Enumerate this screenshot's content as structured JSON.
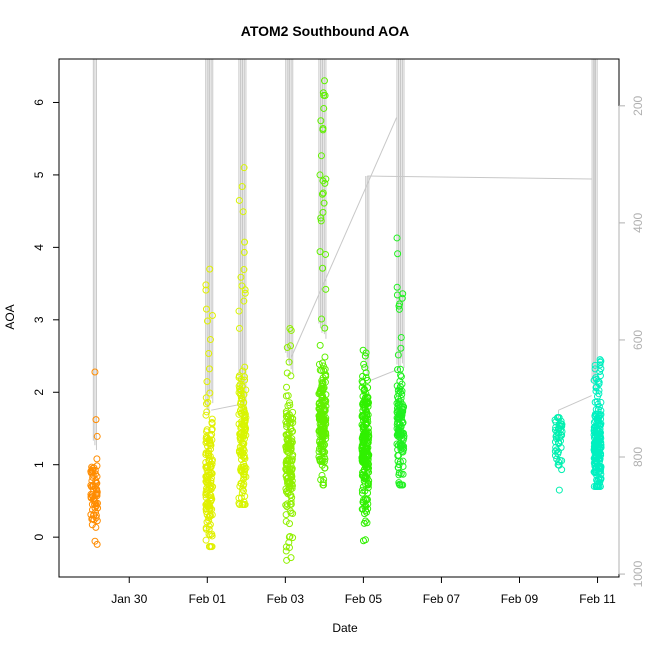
{
  "chart_data": {
    "type": "scatter",
    "title": "ATOM2 Southbound AOA",
    "xlabel": "Date",
    "ylabel": "AOA",
    "x_ticks": [
      "Jan 30",
      "Feb 01",
      "Feb 03",
      "Feb 05",
      "Feb 07",
      "Feb 09",
      "Feb 11"
    ],
    "x_tick_days": [
      0,
      2,
      4,
      6,
      8,
      10,
      12
    ],
    "xlim_days": [
      -1.8,
      12.55
    ],
    "ylim": [
      -0.55,
      6.6
    ],
    "y_ticks": [
      0,
      1,
      2,
      3,
      4,
      5,
      6
    ],
    "y2_ticks": [
      200,
      400,
      600,
      800,
      1000
    ],
    "y2lim": [
      1005,
      120
    ],
    "grid": false,
    "clusters": [
      {
        "day": -0.9,
        "color": "#ff8c00",
        "n": 70,
        "center": 0.6,
        "spread": 0.25,
        "min": -0.1,
        "max": 2.28
      },
      {
        "day": 2.05,
        "color": "#e0f000",
        "n": 150,
        "center": 0.8,
        "spread": 0.45,
        "min": -0.13,
        "max": 3.7
      },
      {
        "day": 2.9,
        "color": "#d8f500",
        "n": 150,
        "center": 1.3,
        "spread": 0.45,
        "min": 0.45,
        "max": 5.1
      },
      {
        "day": 4.1,
        "color": "#90f000",
        "n": 160,
        "center": 1.0,
        "spread": 0.45,
        "min": -0.32,
        "max": 2.88
      },
      {
        "day": 4.95,
        "color": "#60f000",
        "n": 190,
        "center": 1.55,
        "spread": 0.4,
        "min": 0.72,
        "max": 6.3
      },
      {
        "day": 6.05,
        "color": "#30f000",
        "n": 230,
        "center": 1.2,
        "spread": 0.45,
        "min": -0.05,
        "max": 2.58
      },
      {
        "day": 6.95,
        "color": "#20f020",
        "n": 130,
        "center": 1.45,
        "spread": 0.35,
        "min": 0.72,
        "max": 4.13
      },
      {
        "day": 11.0,
        "color": "#00f0b0",
        "n": 50,
        "center": 1.3,
        "spread": 0.25,
        "min": 0.65,
        "max": 1.65
      },
      {
        "day": 12.0,
        "color": "#00f0c0",
        "n": 210,
        "center": 1.2,
        "spread": 0.3,
        "min": 0.7,
        "max": 2.45
      }
    ],
    "profiles": [
      {
        "day": -0.88,
        "top_m": 120,
        "bottom_m": 780
      },
      {
        "day": 2.0,
        "top_m": 120,
        "bottom_m": 720
      },
      {
        "day": 2.1,
        "top_m": 120,
        "bottom_m": 700
      },
      {
        "day": 2.85,
        "top_m": 120,
        "bottom_m": 700
      },
      {
        "day": 2.95,
        "top_m": 120,
        "bottom_m": 730
      },
      {
        "day": 4.05,
        "top_m": 120,
        "bottom_m": 630
      },
      {
        "day": 4.15,
        "top_m": 120,
        "bottom_m": 650
      },
      {
        "day": 4.9,
        "top_m": 120,
        "bottom_m": 580
      },
      {
        "day": 5.0,
        "top_m": 120,
        "bottom_m": 590
      },
      {
        "day": 6.1,
        "top_m": 320,
        "bottom_m": 660
      },
      {
        "day": 6.9,
        "top_m": 120,
        "bottom_m": 650
      },
      {
        "day": 7.0,
        "top_m": 120,
        "bottom_m": 640
      },
      {
        "day": 11.9,
        "top_m": 120,
        "bottom_m": 680
      },
      {
        "day": 11.95,
        "top_m": 120,
        "bottom_m": 670
      }
    ],
    "connectors": [
      {
        "from_day": 2.1,
        "from_m": 720,
        "to_day": 2.85,
        "to_m": 710
      },
      {
        "from_day": 4.15,
        "from_m": 630,
        "to_day": 6.85,
        "to_m": 220
      },
      {
        "from_day": 6.15,
        "from_m": 670,
        "to_day": 6.9,
        "to_m": 650
      },
      {
        "from_day": 6.1,
        "from_m": 320,
        "to_day": 11.85,
        "to_m": 325
      },
      {
        "from_day": 11.0,
        "from_m": 775,
        "to_day": 11.0,
        "to_m": 720
      },
      {
        "from_day": 11.0,
        "from_m": 720,
        "to_day": 11.85,
        "to_m": 695
      }
    ]
  }
}
